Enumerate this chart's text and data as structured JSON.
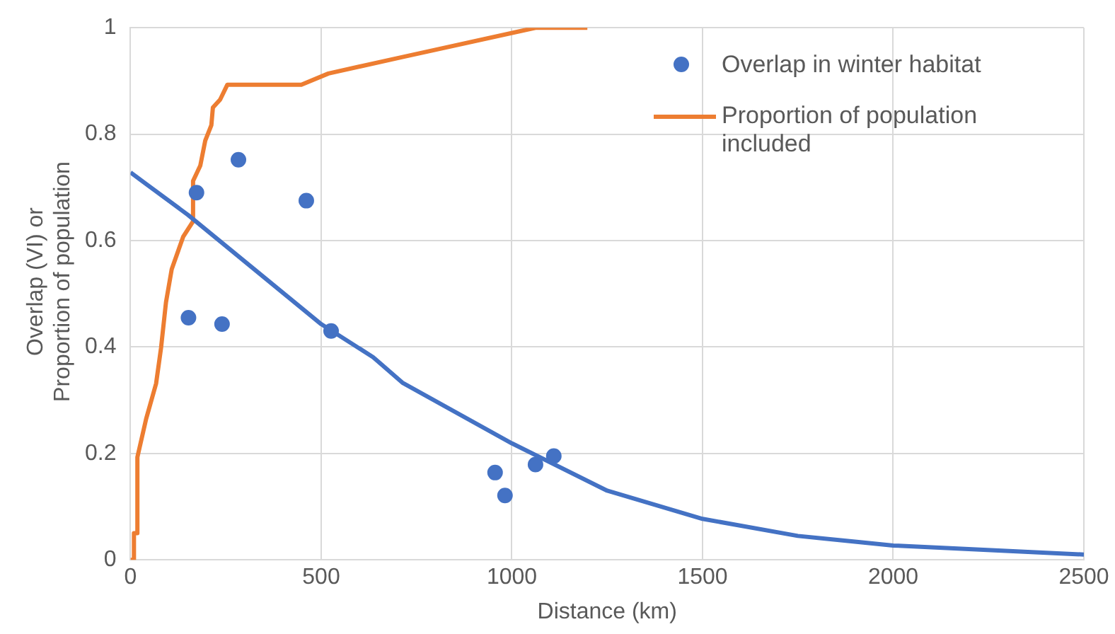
{
  "chart_data": {
    "type": "scatter",
    "xlabel": "Distance (km)",
    "ylabel": "Overlap (VI) or Proportion of population",
    "xlim": [
      0,
      2500
    ],
    "xticks": [
      0,
      500,
      1000,
      1500,
      2000,
      2500
    ],
    "ylim": [
      0,
      1
    ],
    "yticks": [
      0,
      0.2,
      0.4,
      0.6,
      0.8,
      1
    ],
    "grid": true,
    "legend": "top right",
    "series": [
      {
        "type": "line",
        "color": "#4472c4",
        "x": [
          0,
          151,
          500,
          636,
          713,
          1000,
          1250,
          1500,
          1750,
          2000,
          2500
        ],
        "values": [
          0.728,
          0.648,
          0.443,
          0.381,
          0.333,
          0.219,
          0.13,
          0.077,
          0.045,
          0.027,
          0.01
        ]
      },
      {
        "name": "Overlap in winter habitat",
        "color": "#4472c4",
        "marker": "circle",
        "x": [
          152,
          173,
          240,
          283,
          461,
          526,
          956,
          982,
          1062,
          1110
        ],
        "values": [
          0.455,
          0.69,
          0.443,
          0.752,
          0.675,
          0.43,
          0.164,
          0.121,
          0.179,
          0.195
        ]
      },
      {
        "type": "line",
        "name": "Proportion of population included",
        "color": "#ed7d31",
        "x": [
          0,
          9,
          9,
          18,
          18,
          41,
          67,
          80,
          93,
          108,
          138,
          164,
          164,
          183,
          196,
          212,
          216,
          235,
          254,
          448,
          519,
          713,
          1062,
          1198
        ],
        "values": [
          0,
          0,
          0.05,
          0.05,
          0.193,
          0.265,
          0.331,
          0.398,
          0.484,
          0.546,
          0.607,
          0.636,
          0.712,
          0.741,
          0.788,
          0.817,
          0.85,
          0.865,
          0.893,
          0.893,
          0.914,
          0.945,
          1.0,
          1.0
        ]
      }
    ]
  }
}
